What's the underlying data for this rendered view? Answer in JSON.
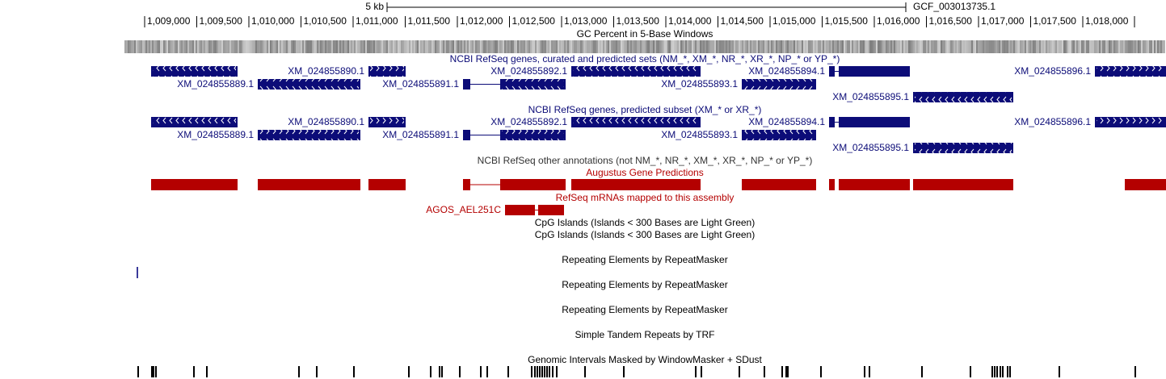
{
  "ruler": {
    "scale_label": "5 kb",
    "assembly": "GCF_003013735.1",
    "positions": [
      "1,009,000",
      "1,009,500",
      "1,010,000",
      "1,010,500",
      "1,011,000",
      "1,011,500",
      "1,012,000",
      "1,012,500",
      "1,013,000",
      "1,013,500",
      "1,014,000",
      "1,014,500",
      "1,015,000",
      "1,015,500",
      "1,016,000",
      "1,016,500",
      "1,017,000",
      "1,017,500",
      "1,018,000"
    ]
  },
  "tracks": [
    {
      "title": "GC Percent in 5-Base Windows"
    },
    {
      "title": "NCBI RefSeq genes, curated and predicted sets (NM_*, XM_*, NR_*, XR_*, NP_* or YP_*)",
      "labels": [
        "XM_024855889.1",
        "XM_024855890.1",
        "XM_024855891.1",
        "XM_024855892.1",
        "XM_024855893.1",
        "XM_024855894.1",
        "XM_024855895.1",
        "XM_024855896.1"
      ]
    },
    {
      "title": "NCBI RefSeq genes, predicted subset (XM_* or XR_*)",
      "labels": [
        "XM_024855889.1",
        "XM_024855890.1",
        "XM_024855891.1",
        "XM_024855892.1",
        "XM_024855893.1",
        "XM_024855894.1",
        "XM_024855895.1",
        "XM_024855896.1"
      ]
    },
    {
      "title": "NCBI RefSeq other annotations (not NM_*, NR_*, XM_*, XR_*, NP_* or YP_*)"
    },
    {
      "title": "Augustus Gene Predictions"
    },
    {
      "title": "RefSeq mRNAs mapped to this assembly",
      "labels": [
        "AGOS_AEL251C"
      ]
    },
    {
      "title": "CpG Islands (Islands < 300 Bases are Light Green)"
    },
    {
      "title": "CpG Islands (Islands < 300 Bases are Light Green)"
    },
    {
      "title": "Repeating Elements by RepeatMasker"
    },
    {
      "title": "Repeating Elements by RepeatMasker"
    },
    {
      "title": "Repeating Elements by RepeatMasker"
    },
    {
      "title": "Simple Tandem Repeats by TRF"
    },
    {
      "title": "Genomic Intervals Masked by WindowMasker + SDust"
    }
  ]
}
